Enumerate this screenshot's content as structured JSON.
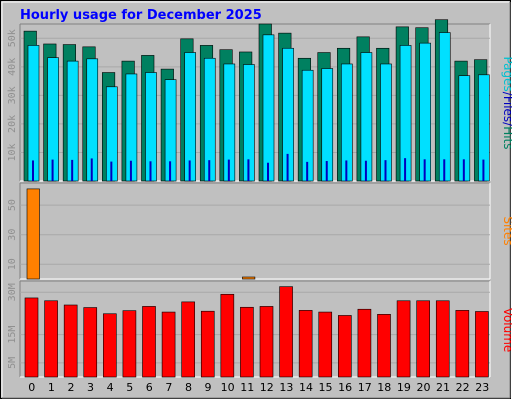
{
  "chart_data": [
    {
      "type": "bar",
      "title": "Hourly usage for December 2025",
      "categories": [
        "0",
        "1",
        "2",
        "3",
        "4",
        "5",
        "6",
        "7",
        "8",
        "9",
        "10",
        "11",
        "12",
        "13",
        "14",
        "15",
        "16",
        "17",
        "18",
        "19",
        "20",
        "21",
        "22",
        "23"
      ],
      "ylim": [
        0,
        55000
      ],
      "yticks": [
        "10k",
        "20k",
        "30k",
        "40k",
        "50k"
      ],
      "ytick_values": [
        10000,
        20000,
        30000,
        40000,
        50000
      ],
      "ylabel_parts": [
        {
          "text": "Pages",
          "color": "#00c0d0"
        },
        {
          "text": "/",
          "color": "#0000c0"
        },
        {
          "text": "Files",
          "color": "#0000c0"
        },
        {
          "text": "/",
          "color": "#0000c0"
        },
        {
          "text": "Hits",
          "color": "#008060"
        }
      ],
      "series": [
        {
          "name": "Hits",
          "color": "#008060",
          "values": [
            52500,
            48000,
            47800,
            47000,
            38000,
            42000,
            44000,
            39200,
            49800,
            47500,
            46000,
            45200,
            55000,
            51800,
            43000,
            45000,
            46500,
            50500,
            46500,
            54000,
            53700,
            56500,
            42000,
            42500
          ]
        },
        {
          "name": "Files",
          "color": "#00e0ff",
          "values": [
            47500,
            43200,
            42000,
            42800,
            33000,
            37500,
            38000,
            35500,
            45000,
            43000,
            41000,
            40800,
            51200,
            46500,
            38800,
            39400,
            41000,
            45000,
            41000,
            47500,
            48300,
            52000,
            36900,
            37200
          ]
        },
        {
          "name": "Pages",
          "color": "#0000c0",
          "values": [
            7200,
            7500,
            7400,
            7900,
            6800,
            7100,
            6900,
            6900,
            7200,
            7300,
            7500,
            7600,
            6400,
            9500,
            6700,
            7000,
            7200,
            7100,
            7300,
            8000,
            7600,
            7600,
            7600,
            7500
          ]
        }
      ]
    },
    {
      "type": "bar",
      "categories": [
        "0",
        "1",
        "2",
        "3",
        "4",
        "5",
        "6",
        "7",
        "8",
        "9",
        "10",
        "11",
        "12",
        "13",
        "14",
        "15",
        "16",
        "17",
        "18",
        "19",
        "20",
        "21",
        "22",
        "23"
      ],
      "ylim": [
        0,
        65
      ],
      "yticks": [
        "10",
        "30",
        "50"
      ],
      "ytick_values": [
        10,
        30,
        50
      ],
      "ylabel": "Sites",
      "series": [
        {
          "name": "Sites",
          "color": "#ff8000",
          "values": [
            61,
            0,
            0,
            0,
            0,
            0,
            0,
            0,
            0,
            0,
            0,
            1,
            0,
            0,
            0,
            0,
            0,
            0,
            0,
            0,
            0,
            0,
            0,
            0
          ]
        }
      ]
    },
    {
      "type": "bar",
      "categories": [
        "0",
        "1",
        "2",
        "3",
        "4",
        "5",
        "6",
        "7",
        "8",
        "9",
        "10",
        "11",
        "12",
        "13",
        "14",
        "15",
        "16",
        "17",
        "18",
        "19",
        "20",
        "21",
        "22",
        "23"
      ],
      "ylim": [
        0,
        34000000
      ],
      "yticks": [
        "5M",
        "15M",
        "30M"
      ],
      "ytick_values": [
        5000000,
        15000000,
        30000000
      ],
      "ylabel": "Volume",
      "series": [
        {
          "name": "Volume",
          "color": "#ff0000",
          "values": [
            28000000,
            27000000,
            25500000,
            24600000,
            22400000,
            23500000,
            25000000,
            23000000,
            26600000,
            23300000,
            29300000,
            24700000,
            25000000,
            32000000,
            23600000,
            23000000,
            21800000,
            24000000,
            22200000,
            27000000,
            27000000,
            27000000,
            23600000,
            23200000
          ]
        }
      ]
    }
  ]
}
